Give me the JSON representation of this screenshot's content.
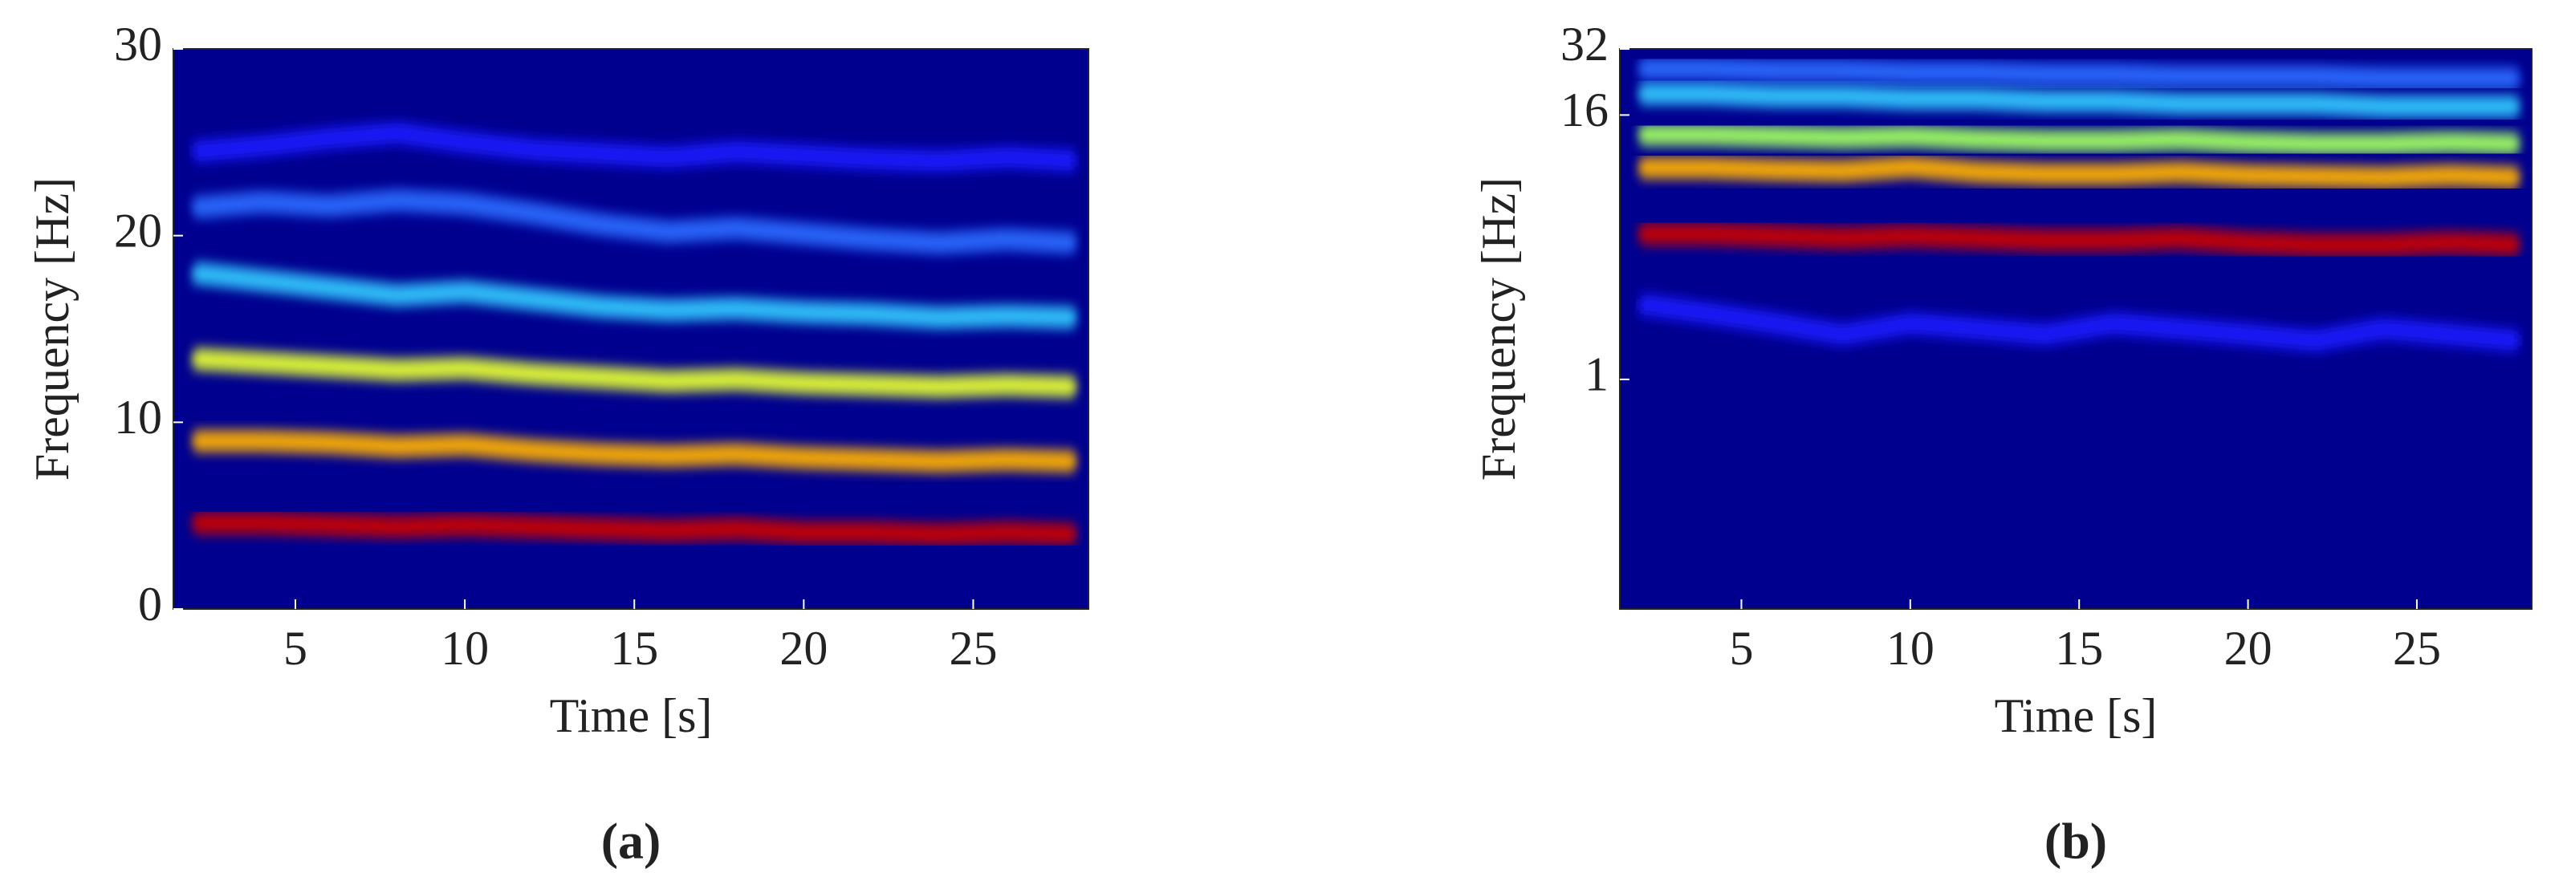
{
  "chart_data": [
    {
      "type": "spectrogram",
      "label": "(a)",
      "xlabel": "Time [s]",
      "ylabel": "Frequency [Hz]",
      "xlim": [
        1.4,
        28.4
      ],
      "xticks": [
        5,
        10,
        15,
        20,
        25
      ],
      "ylim": [
        0,
        30
      ],
      "yticks": [
        0,
        10,
        20,
        30
      ],
      "yscale": "linear",
      "background": "#00008f",
      "x": [
        2,
        4,
        6,
        8,
        10,
        12,
        14,
        16,
        18,
        20,
        22,
        24,
        26,
        28
      ],
      "series": [
        {
          "color": "#1a1aff",
          "values": [
            24.5,
            24.8,
            25.2,
            25.5,
            25.0,
            24.6,
            24.4,
            24.2,
            24.5,
            24.3,
            24.1,
            24.0,
            24.2,
            24.0
          ]
        },
        {
          "color": "#2a6aff",
          "values": [
            21.5,
            21.8,
            21.6,
            21.9,
            21.7,
            21.2,
            20.6,
            20.2,
            20.4,
            20.1,
            19.8,
            19.6,
            19.8,
            19.6
          ]
        },
        {
          "color": "#30c8ff",
          "values": [
            18.0,
            17.6,
            17.2,
            16.8,
            17.0,
            16.6,
            16.2,
            16.0,
            16.1,
            15.9,
            15.8,
            15.6,
            15.7,
            15.6
          ]
        },
        {
          "color": "#e6ff30",
          "values": [
            13.4,
            13.2,
            13.0,
            12.8,
            12.9,
            12.6,
            12.4,
            12.2,
            12.3,
            12.1,
            12.0,
            11.9,
            12.0,
            11.9
          ]
        },
        {
          "color": "#ffb000",
          "values": [
            9.0,
            9.0,
            8.9,
            8.7,
            8.8,
            8.5,
            8.3,
            8.2,
            8.3,
            8.1,
            8.0,
            7.9,
            8.0,
            7.9
          ]
        },
        {
          "color": "#c80000",
          "values": [
            4.6,
            4.6,
            4.5,
            4.4,
            4.5,
            4.4,
            4.3,
            4.2,
            4.3,
            4.1,
            4.1,
            4.0,
            4.1,
            4.0
          ]
        }
      ]
    },
    {
      "type": "spectrogram",
      "label": "(b)",
      "xlabel": "Time [s]",
      "ylabel": "Frequency [Hz]",
      "xlim": [
        1.4,
        28.4
      ],
      "xticks": [
        5,
        10,
        15,
        20,
        25
      ],
      "ylim": [
        0.09,
        32
      ],
      "yticks": [
        1,
        16,
        32
      ],
      "yscale": "log",
      "background": "#00008f",
      "x": [
        2,
        4,
        6,
        8,
        10,
        12,
        14,
        16,
        18,
        20,
        22,
        24,
        26,
        28
      ],
      "series": [
        {
          "color": "#2a6aff",
          "values": [
            26,
            26,
            25.5,
            25.5,
            25,
            25,
            24.5,
            24.5,
            24,
            24,
            24,
            23.5,
            23.5,
            23.5
          ]
        },
        {
          "color": "#30c8ff",
          "values": [
            20,
            20,
            19.5,
            19.5,
            19,
            19,
            18.5,
            18.5,
            18,
            18,
            18,
            17.5,
            17.5,
            17.5
          ]
        },
        {
          "color": "#a0ff60",
          "values": [
            13,
            13,
            12.8,
            12.6,
            12.8,
            12.4,
            12.2,
            12.2,
            12.4,
            12.0,
            11.8,
            11.8,
            12.0,
            11.8
          ]
        },
        {
          "color": "#ffb000",
          "values": [
            9.2,
            9.2,
            9.0,
            8.9,
            9.3,
            8.8,
            8.6,
            8.6,
            8.8,
            8.5,
            8.4,
            8.3,
            8.5,
            8.3
          ]
        },
        {
          "color": "#c80000",
          "values": [
            4.6,
            4.6,
            4.5,
            4.4,
            4.5,
            4.4,
            4.3,
            4.3,
            4.4,
            4.2,
            4.1,
            4.1,
            4.2,
            4.1
          ]
        },
        {
          "color": "#1a1aff",
          "values": [
            2.2,
            2.0,
            1.8,
            1.6,
            1.8,
            1.7,
            1.6,
            1.8,
            1.7,
            1.6,
            1.5,
            1.7,
            1.6,
            1.5
          ]
        }
      ]
    }
  ]
}
